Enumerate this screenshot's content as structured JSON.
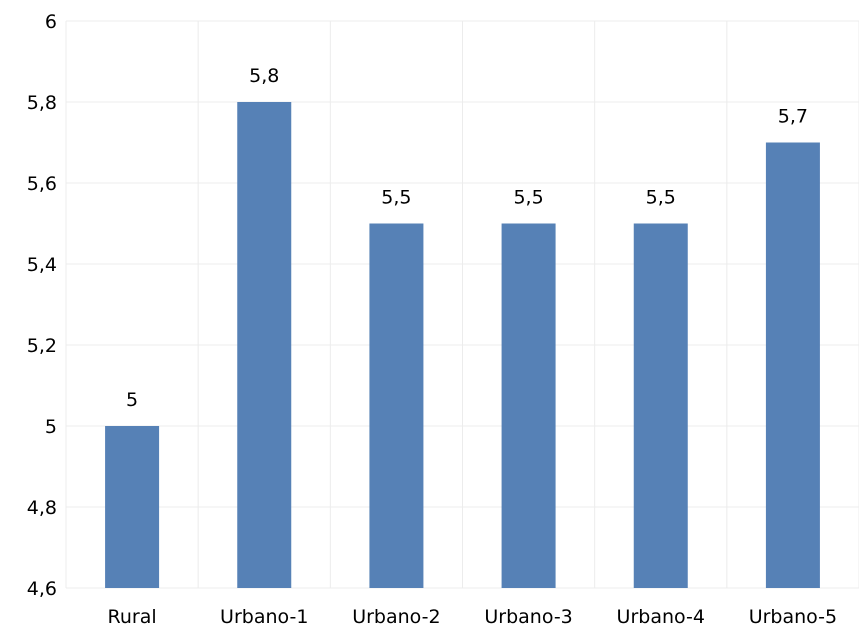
{
  "chart_data": {
    "type": "bar",
    "categories": [
      "Rural",
      "Urbano-1",
      "Urbano-2",
      "Urbano-3",
      "Urbano-4",
      "Urbano-5"
    ],
    "values": [
      5,
      5.8,
      5.5,
      5.5,
      5.5,
      5.7
    ],
    "value_labels": [
      "5",
      "5,8",
      "5,5",
      "5,5",
      "5,5",
      "5,7"
    ],
    "title": "",
    "xlabel": "",
    "ylabel": "",
    "ylim": [
      4.6,
      6
    ],
    "yticks": [
      4.6,
      4.8,
      5,
      5.2,
      5.4,
      5.6,
      5.8,
      6
    ],
    "ytick_labels": [
      "4,6",
      "4,8",
      "5",
      "5,2",
      "5,4",
      "5,6",
      "5,8",
      "6"
    ],
    "grid": true,
    "legend": "none",
    "bar_color": "#5681b6",
    "grid_color": "#ececec"
  }
}
